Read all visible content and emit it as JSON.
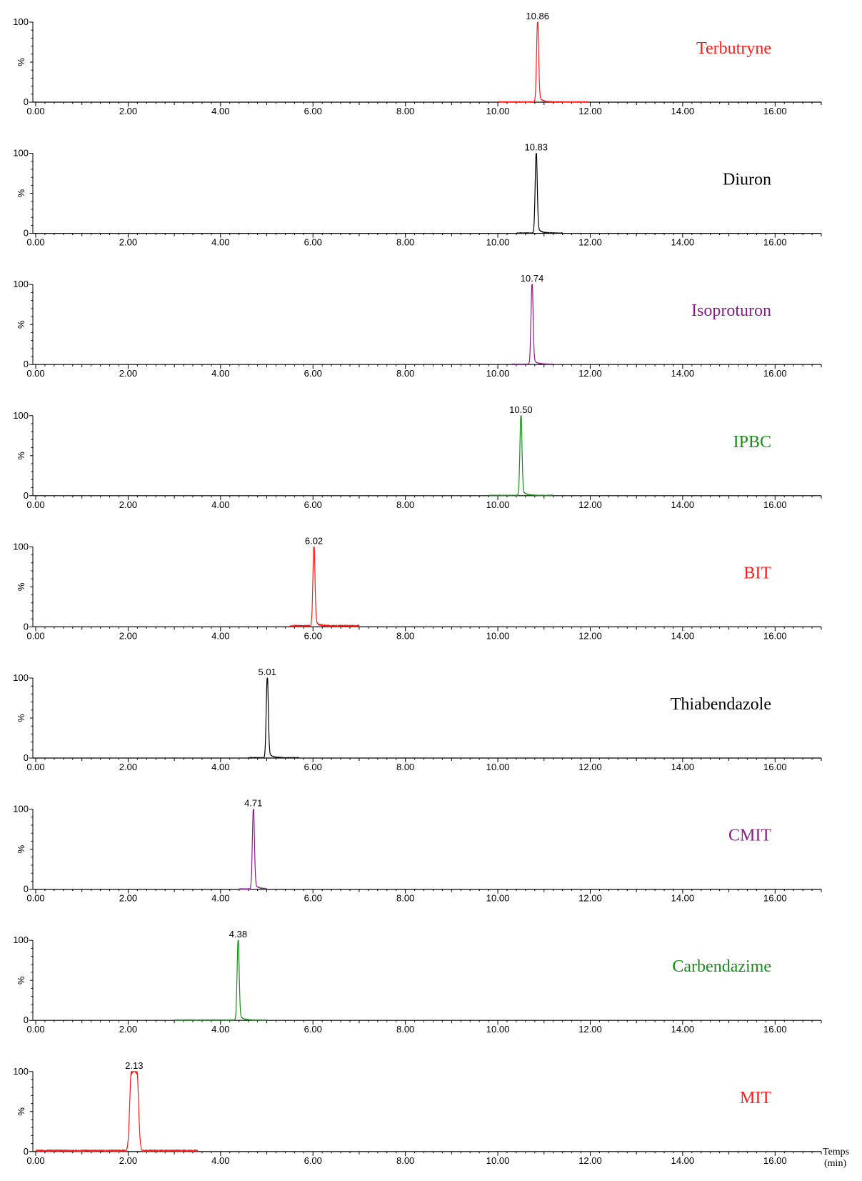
{
  "chart_data": [
    {
      "type": "line",
      "name": "Terbutryne",
      "color": "#ff1a1a",
      "peak": 10.86,
      "peak_label": "10.86",
      "trace_range": [
        10.0,
        11.95
      ],
      "xlim": [
        0,
        17
      ],
      "ylim": [
        0,
        100
      ],
      "ylabel": "%",
      "y_ticks": [
        "0",
        "100"
      ],
      "x_ticks": [
        "0.00",
        "2.00",
        "4.00",
        "6.00",
        "8.00",
        "10.00",
        "12.00",
        "14.00",
        "16.00"
      ]
    },
    {
      "type": "line",
      "name": "Diuron",
      "color": "#000000",
      "peak": 10.83,
      "peak_label": "10.83",
      "trace_range": [
        10.4,
        11.4
      ],
      "xlim": [
        0,
        17
      ],
      "ylim": [
        0,
        100
      ],
      "ylabel": "%",
      "y_ticks": [
        "0",
        "100"
      ],
      "x_ticks": [
        "0.00",
        "2.00",
        "4.00",
        "6.00",
        "8.00",
        "10.00",
        "12.00",
        "14.00",
        "16.00"
      ]
    },
    {
      "type": "line",
      "name": "Isoproturon",
      "color": "#8b1a8b",
      "peak": 10.74,
      "peak_label": "10.74",
      "trace_range": [
        10.3,
        11.2
      ],
      "xlim": [
        0,
        17
      ],
      "ylim": [
        0,
        100
      ],
      "ylabel": "%",
      "y_ticks": [
        "0",
        "100"
      ],
      "x_ticks": [
        "0.00",
        "2.00",
        "4.00",
        "6.00",
        "8.00",
        "10.00",
        "12.00",
        "14.00",
        "16.00"
      ]
    },
    {
      "type": "line",
      "name": "IPBC",
      "color": "#1a8c1a",
      "peak": 10.5,
      "peak_label": "10.50",
      "trace_range": [
        9.8,
        11.2
      ],
      "xlim": [
        0,
        17
      ],
      "ylim": [
        0,
        100
      ],
      "ylabel": "%",
      "y_ticks": [
        "0",
        "100"
      ],
      "x_ticks": [
        "0.00",
        "2.00",
        "4.00",
        "6.00",
        "8.00",
        "10.00",
        "12.00",
        "14.00",
        "16.00"
      ]
    },
    {
      "type": "line",
      "name": "BIT",
      "color": "#ff1a1a",
      "peak": 6.02,
      "peak_label": "6.02",
      "trace_range": [
        5.5,
        7.0
      ],
      "xlim": [
        0,
        17
      ],
      "ylim": [
        0,
        100
      ],
      "ylabel": "%",
      "y_ticks": [
        "0",
        "100"
      ],
      "x_ticks": [
        "0.00",
        "2.00",
        "4.00",
        "6.00",
        "8.00",
        "10.00",
        "12.00",
        "14.00",
        "16.00"
      ]
    },
    {
      "type": "line",
      "name": "Thiabendazole",
      "color": "#000000",
      "peak": 5.01,
      "peak_label": "5.01",
      "trace_range": [
        4.6,
        5.7
      ],
      "xlim": [
        0,
        17
      ],
      "ylim": [
        0,
        100
      ],
      "ylabel": "%",
      "y_ticks": [
        "0",
        "100"
      ],
      "x_ticks": [
        "0.00",
        "2.00",
        "4.00",
        "6.00",
        "8.00",
        "10.00",
        "12.00",
        "14.00",
        "16.00"
      ]
    },
    {
      "type": "line",
      "name": "CMIT",
      "color": "#8b1a8b",
      "peak": 4.71,
      "peak_label": "4.71",
      "trace_range": [
        4.4,
        5.0
      ],
      "xlim": [
        0,
        17
      ],
      "ylim": [
        0,
        100
      ],
      "ylabel": "%",
      "y_ticks": [
        "0",
        "100"
      ],
      "x_ticks": [
        "0.00",
        "2.00",
        "4.00",
        "6.00",
        "8.00",
        "10.00",
        "12.00",
        "14.00",
        "16.00"
      ]
    },
    {
      "type": "line",
      "name": "Carbendazime",
      "color": "#1a8c1a",
      "peak": 4.38,
      "peak_label": "4.38",
      "trace_range": [
        3.0,
        5.0
      ],
      "xlim": [
        0,
        17
      ],
      "ylim": [
        0,
        100
      ],
      "ylabel": "%",
      "y_ticks": [
        "0",
        "100"
      ],
      "x_ticks": [
        "0.00",
        "2.00",
        "4.00",
        "6.00",
        "8.00",
        "10.00",
        "12.00",
        "14.00",
        "16.00"
      ]
    },
    {
      "type": "line",
      "name": "MIT",
      "color": "#ff1a1a",
      "peak": 2.13,
      "peak_label": "2.13",
      "trace_range": [
        0.0,
        3.5
      ],
      "xlim": [
        0,
        17
      ],
      "ylim": [
        0,
        100
      ],
      "ylabel": "%",
      "y_ticks": [
        "0",
        "100"
      ],
      "x_ticks": [
        "0.00",
        "2.00",
        "4.00",
        "6.00",
        "8.00",
        "10.00",
        "12.00",
        "14.00",
        "16.00"
      ],
      "xlabel_line1": "Temps",
      "xlabel_line2": "(min)"
    }
  ]
}
